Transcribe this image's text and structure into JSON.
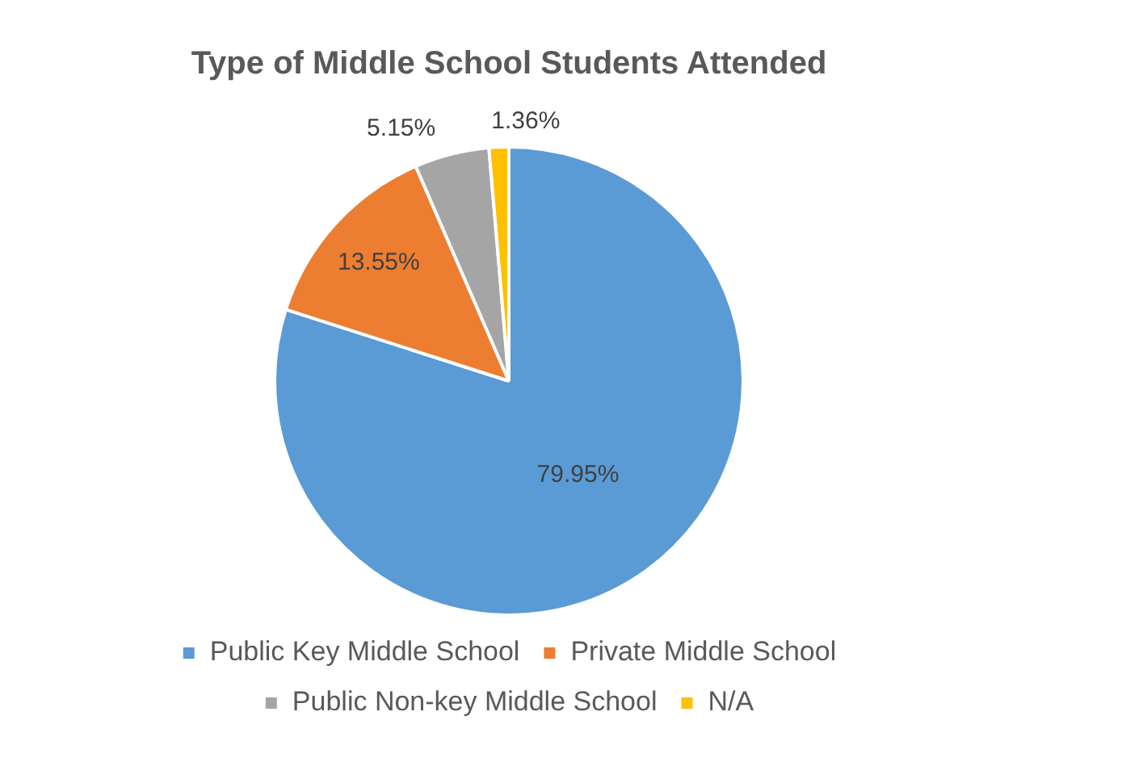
{
  "chart_data": {
    "type": "pie",
    "title": "Type of Middle School Students Attended",
    "categories": [
      "Public Key Middle School",
      "Private Middle School",
      "Public Non-key Middle School",
      "N/A"
    ],
    "values": [
      79.95,
      13.55,
      5.15,
      1.36
    ],
    "colors": [
      "#5b9bd5",
      "#ed7d31",
      "#a5a5a5",
      "#ffc000"
    ],
    "value_labels": [
      "79.95%",
      "13.55%",
      "5.15%",
      "1.36%"
    ],
    "legend": "bottom"
  }
}
